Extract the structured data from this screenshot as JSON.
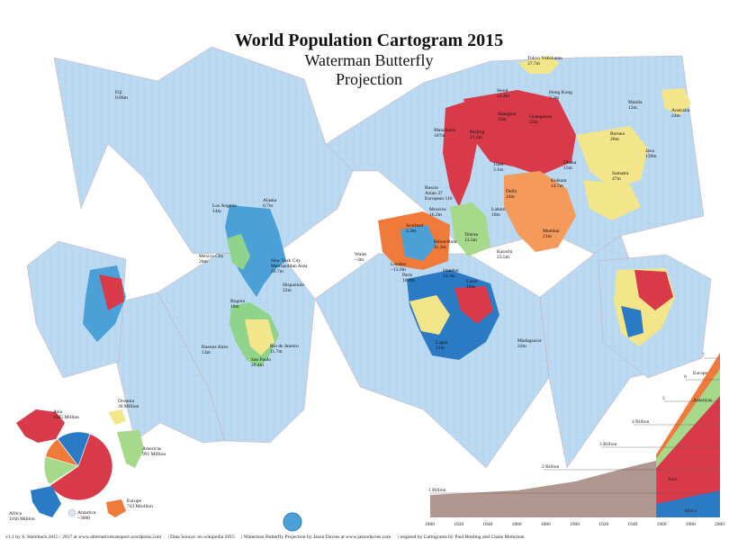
{
  "title": {
    "line1": "World Population Cartogram 2015",
    "line2": "Waterman Butterfly",
    "line3": "Projection"
  },
  "colors": {
    "ocean": "#bcd9f2",
    "grid": "#9fc3e6",
    "asia": "#d93a4a",
    "americas": "#a6d98a",
    "europe": "#f07a3a",
    "africa": "#2b7bc4",
    "oceania": "#f2e58a",
    "india": "#f49a5b",
    "history": "#b09890"
  },
  "cities": [
    {
      "name": "Fiji\n0.86m"
    },
    {
      "name": "Tokyo Yokohama\n37.7m"
    },
    {
      "name": "Seoul\n23.4m"
    },
    {
      "name": "Hong Kong\n7.3m"
    },
    {
      "name": "Manila\n12m"
    },
    {
      "name": "Australia\n24m"
    },
    {
      "name": "Manchuria\n107m"
    },
    {
      "name": "Shanghai\n23m"
    },
    {
      "name": "Guangzhou\n25m"
    },
    {
      "name": "Beijing\n21.2m"
    },
    {
      "name": "Borneo\n20m"
    },
    {
      "name": "Tibet\n3.1m"
    },
    {
      "name": "Dhaka\n15m"
    },
    {
      "name": "Java\n139m"
    },
    {
      "name": "Sumatra\n47m"
    },
    {
      "name": "Kolkata\n14.7m"
    },
    {
      "name": "Delhi\n24m"
    },
    {
      "name": "Russia\nAsian 37\nEuropean 110"
    },
    {
      "name": "Alaska\n0.7m"
    },
    {
      "name": "Los Angeles\n14m"
    },
    {
      "name": "Moscow\n16.2m"
    },
    {
      "name": "Lahore\n10m"
    },
    {
      "name": "Scotland\n5.3m"
    },
    {
      "name": "Tehran\n13.5m"
    },
    {
      "name": "Mumbai\n21m"
    },
    {
      "name": "Rhine-Ruhr\n11.3m"
    },
    {
      "name": "Karachi\n23.5m"
    },
    {
      "name": "Mexico City\n20m"
    },
    {
      "name": "New York City\nMetropolitan Area\n20.7m"
    },
    {
      "name": "Wales\n~3m"
    },
    {
      "name": "London\n~13.9m"
    },
    {
      "name": "Paris\n10.8m"
    },
    {
      "name": "Istanbul\n13.3m"
    },
    {
      "name": "Hispaniola\n22m"
    },
    {
      "name": "Cairo\n16m"
    },
    {
      "name": "Bogota\n18m"
    },
    {
      "name": "Lagos\n21m"
    },
    {
      "name": "Madagascar\n22m"
    },
    {
      "name": "Buenos Aires\n13m"
    },
    {
      "name": "Rio de Janeiro\n11.7m"
    },
    {
      "name": "Sao Paulo\n20.4m"
    }
  ],
  "continent_pie": [
    {
      "name": "Asia",
      "label": "Asia\n4385 Million",
      "value": 4385,
      "color": "#d93a4a"
    },
    {
      "name": "Oceania",
      "label": "Oceania\n39 Million",
      "value": 39,
      "color": "#f2e58a"
    },
    {
      "name": "Americas",
      "label": "Americas\n991 Million",
      "value": 991,
      "color": "#a6d98a"
    },
    {
      "name": "Europe",
      "label": "Europe\n743 Miollion",
      "value": 743,
      "color": "#f07a3a"
    },
    {
      "name": "Antartica",
      "label": "Antartica\n~3000",
      "value": 0.003,
      "color": "#ffffff"
    },
    {
      "name": "Africa",
      "label": "Africa\n1166 Million",
      "value": 1166,
      "color": "#2b7bc4"
    }
  ],
  "history_chart": {
    "x_ticks": [
      "1800",
      "1820",
      "1840",
      "1860",
      "1880",
      "1900",
      "1920",
      "1940",
      "1960",
      "1980",
      "2000"
    ],
    "billion_labels": [
      "1 Billion",
      "2 Billion",
      "3 Billion",
      "4 Billion",
      "5",
      "6",
      "7"
    ],
    "series_labels": [
      "Europe",
      "Americas",
      "Asia",
      "Africa"
    ]
  },
  "footer": [
    "v1.1 by S. Steinbach 2015 / 2017  at  www.alternativetransport.wordpress.com",
    "|  Data Source: en.wikipedia 2015",
    "|  Waterman Butterfly Projection by Jason Davies at www.jasondavies.com",
    "|  inspired by Cartograms by Paul Breding and Chase Mohrman"
  ]
}
